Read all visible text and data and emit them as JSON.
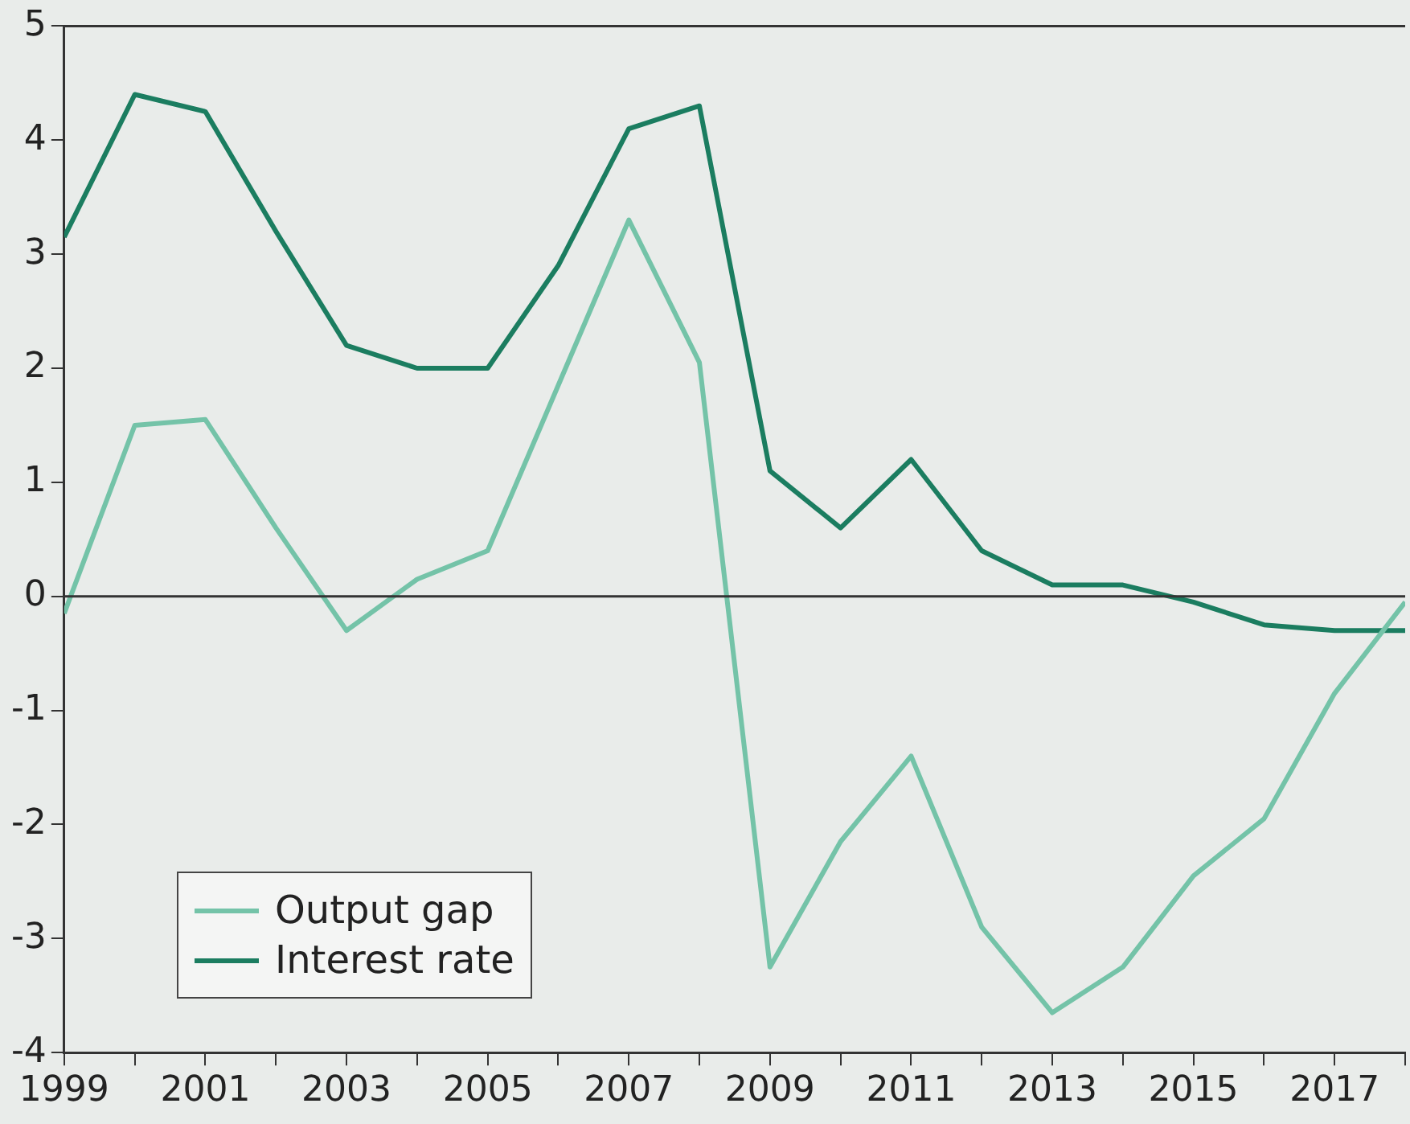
{
  "chart_data": {
    "type": "line",
    "x": [
      1999,
      2000,
      2001,
      2002,
      2003,
      2004,
      2005,
      2006,
      2007,
      2008,
      2009,
      2010,
      2011,
      2012,
      2013,
      2014,
      2015,
      2016,
      2017,
      2018
    ],
    "series": [
      {
        "name": "Output gap",
        "color": "#74c3a8",
        "values": [
          -0.15,
          1.5,
          1.55,
          0.6,
          -0.3,
          0.15,
          0.4,
          1.85,
          3.3,
          2.05,
          -3.25,
          -2.15,
          -1.4,
          -2.9,
          -3.65,
          -3.25,
          -2.45,
          -1.95,
          -0.85,
          -0.05
        ]
      },
      {
        "name": "Interest rate",
        "color": "#1b7d60",
        "values": [
          3.15,
          4.4,
          4.25,
          3.2,
          2.2,
          2.0,
          2.0,
          2.9,
          4.1,
          4.3,
          1.1,
          0.6,
          1.2,
          0.4,
          0.1,
          0.1,
          -0.05,
          -0.25,
          -0.3,
          -0.3
        ]
      }
    ],
    "xlim": [
      1999,
      2018
    ],
    "xticks": [
      1999,
      {
        "value": 2000,
        "label": null
      },
      2001,
      {
        "value": 2002,
        "label": null
      },
      2003,
      {
        "value": 2004,
        "label": null
      },
      2005,
      {
        "value": 2006,
        "label": null
      },
      2007,
      {
        "value": 2008,
        "label": null
      },
      2009,
      {
        "value": 2010,
        "label": null
      },
      2011,
      {
        "value": 2012,
        "label": null
      },
      2013,
      {
        "value": 2014,
        "label": null
      },
      2015,
      {
        "value": 2016,
        "label": null
      },
      2017,
      {
        "value": 2018,
        "label": null
      }
    ],
    "ylim": [
      -4,
      5
    ],
    "yticks": [
      -4,
      -3,
      -2,
      -1,
      0,
      1,
      2,
      3,
      4,
      5
    ],
    "ref_lines": [
      {
        "axis": "y",
        "value": 0,
        "color": "#333333"
      }
    ],
    "grid": false,
    "legend": "bottom left",
    "marker": "none",
    "line_style": "solid"
  }
}
